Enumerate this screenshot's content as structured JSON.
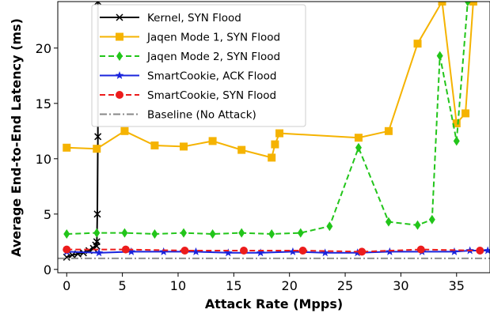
{
  "chart_data": {
    "type": "line",
    "xlabel": "Attack Rate (Mpps)",
    "ylabel": "Average End-to-End Latency (ms)",
    "xlim": [
      -0.8,
      38
    ],
    "ylim": [
      -0.3,
      24.2
    ],
    "xticks": [
      "0",
      "5",
      "10",
      "15",
      "20",
      "25",
      "30",
      "35"
    ],
    "yticks": [
      "0",
      "5",
      "10",
      "15",
      "20"
    ],
    "legend_position": "top-left",
    "series": [
      {
        "name": "Kernel, SYN Flood",
        "color": "#000000",
        "linestyle": "solid",
        "marker": "x",
        "x": [
          0,
          0.5,
          1,
          1.5,
          2,
          2.4,
          2.6,
          2.7,
          2.7,
          2.75,
          2.8,
          2.8
        ],
        "y": [
          1.1,
          1.3,
          1.4,
          1.5,
          1.7,
          1.9,
          2.2,
          2.5,
          2.1,
          5.0,
          12.0,
          24.2
        ]
      },
      {
        "name": "Jaqen Mode 1, SYN Flood",
        "color": "#f5b301",
        "linestyle": "solid",
        "marker": "square",
        "x": [
          0,
          2.7,
          5.2,
          7.9,
          10.5,
          13.1,
          15.7,
          18.4,
          18.7,
          19.1,
          26.2,
          28.9,
          31.5,
          33.7,
          35.0,
          35.8,
          36.5,
          37.2
        ],
        "y": [
          11.0,
          10.9,
          12.5,
          11.2,
          11.1,
          11.6,
          10.8,
          10.1,
          11.3,
          12.3,
          11.9,
          12.5,
          20.4,
          24.2,
          13.2,
          14.1,
          24.2,
          28.0
        ]
      },
      {
        "name": "Jaqen Mode 2, SYN Flood",
        "color": "#22c51a",
        "linestyle": "dashed",
        "marker": "diamond",
        "x": [
          0,
          2.7,
          5.2,
          7.9,
          10.5,
          13.1,
          15.7,
          18.4,
          21.0,
          23.6,
          26.2,
          28.9,
          31.5,
          32.8,
          33.5,
          35.0,
          36.0
        ],
        "y": [
          3.2,
          3.3,
          3.3,
          3.2,
          3.3,
          3.2,
          3.3,
          3.2,
          3.3,
          3.9,
          11.0,
          4.3,
          4.0,
          4.5,
          19.3,
          11.6,
          24.2
        ]
      },
      {
        "name": "SmartCookie, ACK Flood",
        "color": "#1a24dd",
        "linestyle": "solid",
        "marker": "star",
        "x": [
          0,
          2.9,
          5.8,
          8.7,
          11.6,
          14.5,
          17.4,
          20.3,
          23.2,
          26.1,
          29.0,
          31.9,
          34.8,
          36.2,
          37.8
        ],
        "y": [
          1.6,
          1.5,
          1.6,
          1.6,
          1.6,
          1.5,
          1.5,
          1.6,
          1.5,
          1.5,
          1.6,
          1.6,
          1.6,
          1.7,
          1.7
        ]
      },
      {
        "name": "SmartCookie, SYN Flood",
        "color": "#ec1c1c",
        "linestyle": "dashed",
        "marker": "circle",
        "x": [
          0,
          5.3,
          10.6,
          15.9,
          21.2,
          26.5,
          31.8,
          37.1
        ],
        "y": [
          1.8,
          1.8,
          1.7,
          1.7,
          1.7,
          1.6,
          1.8,
          1.7
        ]
      },
      {
        "name": "Baseline (No Attack)",
        "color": "#888888",
        "linestyle": "dashdot",
        "marker": "none",
        "x": [
          -0.8,
          38
        ],
        "y": [
          1.0,
          1.0
        ]
      }
    ]
  }
}
